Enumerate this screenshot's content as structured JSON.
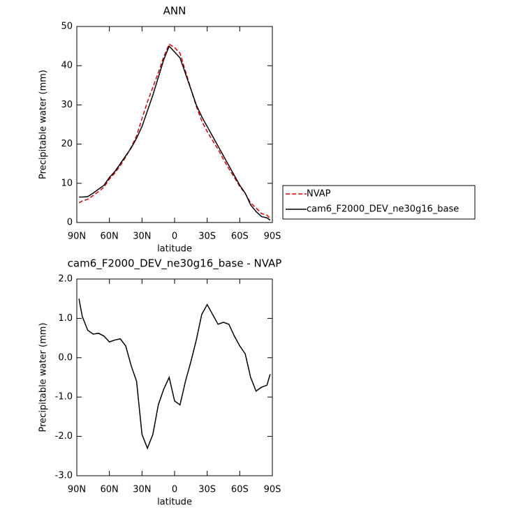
{
  "chart_data": [
    {
      "type": "line",
      "title": "ANN",
      "xlabel": "latitude",
      "ylabel": "Precipitable water (mm)",
      "x": [
        88,
        85,
        80,
        75,
        70,
        65,
        60,
        55,
        50,
        45,
        40,
        35,
        30,
        25,
        20,
        15,
        10,
        5,
        0,
        -5,
        -10,
        -15,
        -20,
        -25,
        -30,
        -35,
        -40,
        -45,
        -50,
        -55,
        -60,
        -65,
        -70,
        -75,
        -80,
        -85,
        -88
      ],
      "series": [
        {
          "name": "NVAP",
          "color": "#e00000",
          "dash": true,
          "values": [
            5.0,
            5.5,
            5.9,
            6.9,
            7.9,
            9.0,
            11.1,
            12.6,
            14.5,
            16.7,
            19.2,
            22.1,
            26.5,
            30.8,
            34.5,
            38.2,
            42.3,
            45.5,
            44.6,
            43.2,
            38.6,
            34.1,
            29.6,
            25.9,
            23.2,
            20.9,
            18.7,
            16.1,
            13.7,
            11.5,
            9.2,
            7.4,
            5.0,
            3.7,
            2.3,
            1.9,
            1.0
          ]
        },
        {
          "name": "cam6_F2000_DEV_ne30g16_base",
          "color": "#000000",
          "dash": false,
          "values": [
            6.5,
            6.5,
            6.6,
            7.5,
            8.5,
            9.5,
            11.5,
            13.0,
            15.0,
            17.0,
            19.0,
            21.5,
            24.5,
            28.5,
            32.5,
            37.0,
            41.5,
            45.0,
            43.5,
            42.0,
            38.0,
            34.0,
            30.0,
            27.0,
            24.5,
            22.0,
            19.5,
            17.0,
            14.5,
            12.0,
            9.5,
            7.5,
            4.5,
            2.8,
            1.5,
            1.2,
            0.6
          ]
        }
      ],
      "xlim": [
        90,
        -90
      ],
      "xticks": [
        {
          "value": 90,
          "label": "90N"
        },
        {
          "value": 60,
          "label": "60N"
        },
        {
          "value": 30,
          "label": "30N"
        },
        0,
        {
          "value": -30,
          "label": "30S"
        },
        {
          "value": -60,
          "label": "60S"
        },
        {
          "value": -90,
          "label": "90S"
        }
      ],
      "ylim": [
        0,
        50
      ],
      "yticks": [
        0,
        10,
        20,
        30,
        40,
        50
      ],
      "legend": "right"
    },
    {
      "type": "line",
      "title": "cam6_F2000_DEV_ne30g16_base - NVAP",
      "xlabel": "latitude",
      "ylabel": "Precipitable water (mm)",
      "x": [
        88,
        85,
        80,
        75,
        70,
        65,
        60,
        55,
        50,
        45,
        40,
        35,
        30,
        25,
        20,
        15,
        10,
        5,
        0,
        -5,
        -10,
        -15,
        -20,
        -25,
        -30,
        -35,
        -40,
        -45,
        -50,
        -55,
        -60,
        -65,
        -70,
        -75,
        -80,
        -85,
        -88
      ],
      "values": [
        1.5,
        1.05,
        0.7,
        0.6,
        0.62,
        0.55,
        0.4,
        0.45,
        0.48,
        0.3,
        -0.2,
        -0.6,
        -1.95,
        -2.3,
        -1.95,
        -1.2,
        -0.8,
        -0.5,
        -1.1,
        -1.2,
        -0.6,
        -0.1,
        0.45,
        1.1,
        1.35,
        1.1,
        0.85,
        0.9,
        0.85,
        0.55,
        0.3,
        0.1,
        -0.5,
        -0.85,
        -0.75,
        -0.7,
        -0.42
      ],
      "color": "#000000",
      "xlim": [
        90,
        -90
      ],
      "xticks": [
        {
          "value": 90,
          "label": "90N"
        },
        {
          "value": 60,
          "label": "60N"
        },
        {
          "value": 30,
          "label": "30N"
        },
        0,
        {
          "value": -30,
          "label": "30S"
        },
        {
          "value": -60,
          "label": "60S"
        },
        {
          "value": -90,
          "label": "90S"
        }
      ],
      "ylim": [
        -3,
        2
      ],
      "yticks": [
        {
          "value": -3,
          "label": "-3.0"
        },
        {
          "value": -2,
          "label": "-2.0"
        },
        {
          "value": -1,
          "label": "-1.0"
        },
        {
          "value": 0,
          "label": "0.0"
        },
        {
          "value": 1,
          "label": "1.0"
        },
        {
          "value": 2,
          "label": "2.0"
        }
      ]
    }
  ]
}
